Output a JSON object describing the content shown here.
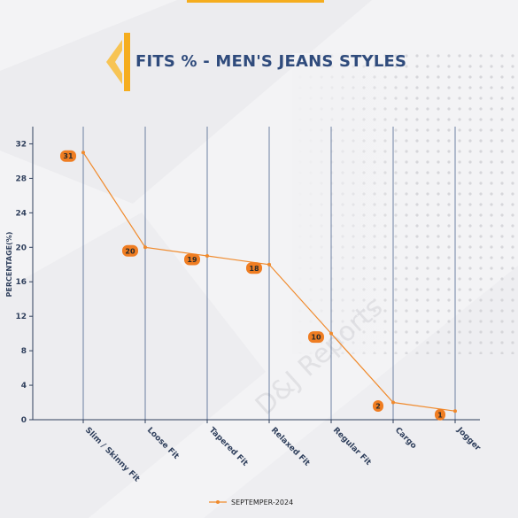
{
  "header": {
    "title": "FITS % - MEN'S JEANS STYLES"
  },
  "colors": {
    "accent": "#f5ad1e",
    "line": "#f08a2c",
    "label_bg": "#ef7d22",
    "grid": "#2f4b7c",
    "title": "#2f4b7c"
  },
  "watermark": {
    "text": "D&J Reports"
  },
  "chart_data": {
    "type": "line",
    "title": "FITS % - MEN'S JEANS STYLES",
    "xlabel": "",
    "ylabel": "PERCENTAGE(%)",
    "categories": [
      "Slim / Skinny Fit",
      "Loose Fit",
      "Tapered Fit",
      "Relaxed Fit",
      "Regular Fit",
      "Cargo",
      "Jogger"
    ],
    "series": [
      {
        "name": "SEPTEMPER-2024",
        "values": [
          31,
          20,
          19,
          18,
          10,
          2,
          1
        ]
      }
    ],
    "yticks": [
      0,
      4,
      8,
      12,
      16,
      20,
      24,
      28,
      32
    ],
    "ylim": [
      0,
      34
    ],
    "grid": "vertical",
    "legend": "bottom-center"
  }
}
